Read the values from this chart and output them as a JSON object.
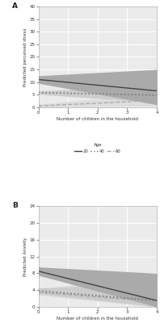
{
  "panel_A": {
    "ylabel": "Predicted perceived stress",
    "xlabel": "Number of children in the household",
    "ylim": [
      0,
      40
    ],
    "xlim": [
      0,
      4
    ],
    "yticks": [
      0,
      5,
      10,
      15,
      20,
      25,
      30,
      35,
      40
    ],
    "xticks": [
      0,
      1,
      2,
      3,
      4
    ],
    "lines": {
      "age20": {
        "x": [
          0,
          4
        ],
        "y": [
          11.0,
          6.5
        ],
        "ci_upper": [
          12.5,
          15.0
        ],
        "ci_lower": [
          9.5,
          1.0
        ],
        "color": "#444444",
        "linestyle": "solid",
        "linewidth": 1.0,
        "ci_alpha": 1.0,
        "ci_color": "#aaaaaa"
      },
      "age40": {
        "x": [
          0,
          4
        ],
        "y": [
          5.8,
          4.8
        ],
        "ci_upper": [
          6.5,
          8.5
        ],
        "ci_lower": [
          5.1,
          2.0
        ],
        "color": "#777777",
        "linestyle": "dotted",
        "linewidth": 1.2,
        "ci_alpha": 1.0,
        "ci_color": "#cccccc"
      },
      "age60": {
        "x": [
          0,
          4
        ],
        "y": [
          0.5,
          2.8
        ],
        "ci_upper": [
          1.2,
          5.5
        ],
        "ci_lower": [
          0.0,
          0.5
        ],
        "color": "#aaaaaa",
        "linestyle": "dashed",
        "linewidth": 1.0,
        "ci_alpha": 1.0,
        "ci_color": "#dddddd"
      }
    }
  },
  "panel_B": {
    "ylabel": "Predicted Anxiety",
    "xlabel": "Number of children in the household",
    "ylim": [
      0,
      24
    ],
    "xlim": [
      0,
      4
    ],
    "yticks": [
      0,
      4,
      8,
      12,
      16,
      20,
      24
    ],
    "xticks": [
      0,
      1,
      2,
      3,
      4
    ],
    "lines": {
      "age20": {
        "x": [
          0,
          4
        ],
        "y": [
          8.5,
          1.5
        ],
        "ci_upper": [
          9.5,
          8.0
        ],
        "ci_lower": [
          7.5,
          0.0
        ],
        "color": "#444444",
        "linestyle": "solid",
        "linewidth": 1.0,
        "ci_alpha": 1.0,
        "ci_color": "#aaaaaa"
      },
      "age40": {
        "x": [
          0,
          4
        ],
        "y": [
          3.8,
          1.5
        ],
        "ci_upper": [
          4.5,
          5.5
        ],
        "ci_lower": [
          3.1,
          0.0
        ],
        "color": "#777777",
        "linestyle": "dotted",
        "linewidth": 1.2,
        "ci_alpha": 1.0,
        "ci_color": "#cccccc"
      },
      "age60": {
        "x": [
          0,
          4
        ],
        "y": [
          3.5,
          1.2
        ],
        "ci_upper": [
          4.2,
          8.0
        ],
        "ci_lower": [
          2.8,
          0.0
        ],
        "color": "#aaaaaa",
        "linestyle": "dashed",
        "linewidth": 1.0,
        "ci_alpha": 1.0,
        "ci_color": "#dddddd"
      }
    }
  },
  "legend": {
    "ages": [
      "20",
      "40",
      "60"
    ],
    "colors": [
      "#444444",
      "#777777",
      "#aaaaaa"
    ],
    "linestyles": [
      "solid",
      "dotted",
      "dashed"
    ]
  },
  "fig_background": "#ffffff",
  "plot_background": "#ebebeb",
  "grid_color": "#ffffff",
  "label_A": "A",
  "label_B": "B"
}
